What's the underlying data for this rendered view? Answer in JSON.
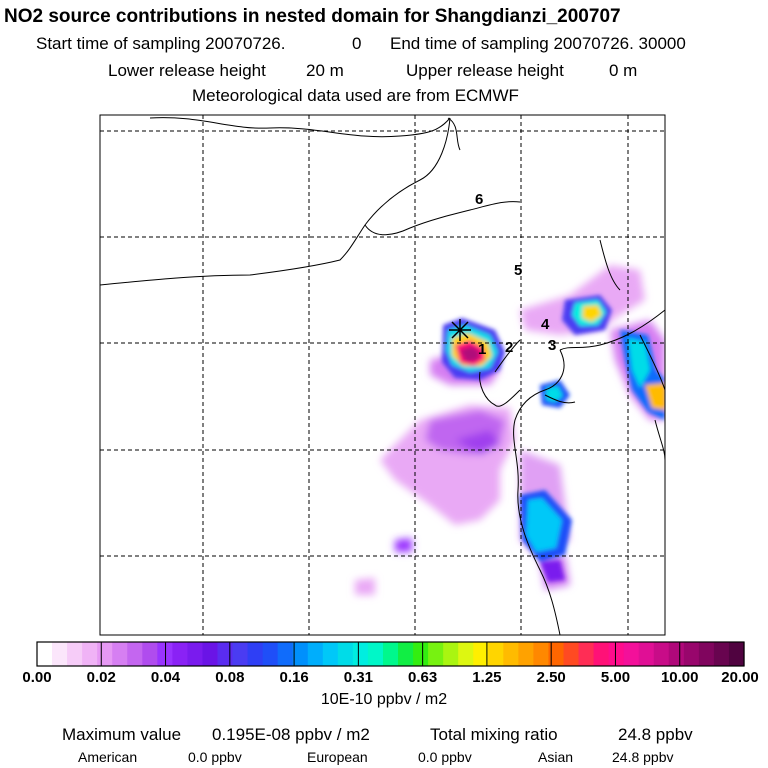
{
  "header": {
    "title": "NO2 source contributions in nested domain for Shangdianzi_200707",
    "start_label": "Start time of sampling 20070726.",
    "start_value": "0",
    "end_label": "End time of sampling 20070726. 30000",
    "lower_label": "Lower release height",
    "lower_value": "20 m",
    "upper_label": "Upper release height",
    "upper_value": "0 m",
    "met_line": "Meteorological data used are from ECMWF"
  },
  "chart_data": {
    "type": "heatmap",
    "colorbar": {
      "tick_labels": [
        "0.00",
        "0.02",
        "0.04",
        "0.08",
        "0.16",
        "0.31",
        "0.63",
        "1.25",
        "2.50",
        "5.00",
        "10.00",
        "20.00"
      ],
      "unit": "10E-10 ppbv / m2",
      "colors": [
        "#ffffff",
        "#fbe6fb",
        "#f6ccf8",
        "#f0b3f6",
        "#e699f4",
        "#d67ff2",
        "#c466f0",
        "#b04cee",
        "#9933ff",
        "#8a22f5",
        "#7a1bee",
        "#6a14e6",
        "#5a2cf0",
        "#4a3cf2",
        "#2f3ff5",
        "#1f4ff8",
        "#106cfb",
        "#0090fc",
        "#00aefc",
        "#00c8f8",
        "#00dce8",
        "#00eee0",
        "#00f7c8",
        "#00f88c",
        "#11ee44",
        "#33ee11",
        "#77f211",
        "#aaf511",
        "#ddf711",
        "#ffef00",
        "#ffd500",
        "#ffbb00",
        "#ffa200",
        "#ff8800",
        "#ff6600",
        "#ff4a22",
        "#ff2d55",
        "#ff1177",
        "#ff0c8c",
        "#f3109a",
        "#e00f95",
        "#c80c88",
        "#b0087a",
        "#98066c",
        "#80055e",
        "#68044f",
        "#500340"
      ]
    },
    "map": {
      "receptor": "Shangdianzi",
      "labels": [
        "1",
        "2",
        "3",
        "4",
        "5",
        "6"
      ]
    },
    "summary": {
      "max_label": "Maximum value",
      "max_value": "0.195E-08 ppbv / m2",
      "total_label": "Total mixing ratio",
      "total_value": "24.8 ppbv",
      "regions": [
        {
          "name": "American",
          "value": "0.0 ppbv"
        },
        {
          "name": "European",
          "value": "0.0 ppbv"
        },
        {
          "name": "Asian",
          "value": "24.8 ppbv"
        }
      ]
    }
  }
}
